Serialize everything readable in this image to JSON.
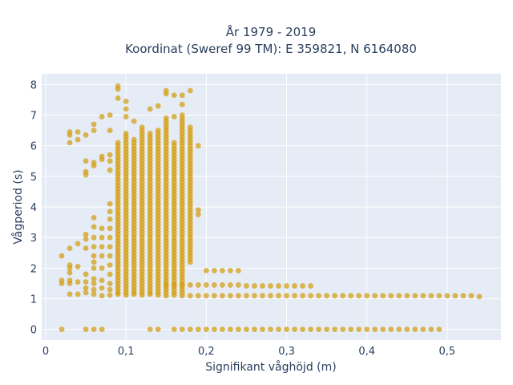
{
  "chart_data": {
    "type": "scatter",
    "title_line1": "År 1979 - 2019",
    "title_line2": "Koordinat (Sweref 99 TM): E 359821, N 6164080",
    "xlabel": "Signifikant våghöjd (m)",
    "ylabel": "Vågperiod (s)",
    "xlim": [
      -0.005,
      0.567
    ],
    "ylim": [
      -0.35,
      8.35
    ],
    "x_ticks": [
      0,
      0.1,
      0.2,
      0.3,
      0.4,
      0.5
    ],
    "x_tick_labels": [
      "0",
      "0,1",
      "0,2",
      "0,3",
      "0,4",
      "0,5"
    ],
    "y_ticks": [
      0,
      1,
      2,
      3,
      4,
      5,
      6,
      7,
      8
    ],
    "y_tick_labels": [
      "0",
      "1",
      "2",
      "3",
      "4",
      "5",
      "6",
      "7",
      "8"
    ],
    "grid": true,
    "legend": "none",
    "marker_color": "#d4a017",
    "plot_bgcolor": "#e5ecf6",
    "series": [
      {
        "values": [
          [
            0.02,
            0
          ],
          [
            0.05,
            0
          ],
          [
            0.06,
            0
          ],
          [
            0.07,
            0
          ],
          [
            0.13,
            0
          ],
          [
            0.14,
            0
          ],
          [
            0.16,
            0
          ],
          [
            0.17,
            0
          ],
          [
            0.18,
            0
          ],
          [
            0.19,
            0
          ],
          [
            0.2,
            0
          ],
          [
            0.21,
            0
          ],
          [
            0.22,
            0
          ],
          [
            0.23,
            0
          ],
          [
            0.24,
            0
          ],
          [
            0.25,
            0
          ],
          [
            0.26,
            0
          ],
          [
            0.27,
            0
          ],
          [
            0.28,
            0
          ],
          [
            0.29,
            0
          ],
          [
            0.3,
            0
          ],
          [
            0.31,
            0
          ],
          [
            0.32,
            0
          ],
          [
            0.33,
            0
          ],
          [
            0.34,
            0
          ],
          [
            0.35,
            0
          ],
          [
            0.36,
            0
          ],
          [
            0.37,
            0
          ],
          [
            0.38,
            0
          ],
          [
            0.39,
            0
          ],
          [
            0.4,
            0
          ],
          [
            0.41,
            0
          ],
          [
            0.42,
            0
          ],
          [
            0.43,
            0
          ],
          [
            0.44,
            0
          ],
          [
            0.45,
            0
          ],
          [
            0.46,
            0
          ],
          [
            0.47,
            0
          ],
          [
            0.48,
            0
          ],
          [
            0.49,
            0
          ],
          [
            0.03,
            1.15
          ],
          [
            0.04,
            1.15
          ],
          [
            0.05,
            1.2
          ],
          [
            0.06,
            1.15
          ],
          [
            0.07,
            1.1
          ],
          [
            0.08,
            1.12
          ],
          [
            0.09,
            1.15
          ],
          [
            0.1,
            1.12
          ],
          [
            0.11,
            1.15
          ],
          [
            0.12,
            1.12
          ],
          [
            0.13,
            1.15
          ],
          [
            0.14,
            1.12
          ],
          [
            0.15,
            1.1
          ],
          [
            0.16,
            1.12
          ],
          [
            0.17,
            1.1
          ],
          [
            0.18,
            1.1
          ],
          [
            0.19,
            1.1
          ],
          [
            0.2,
            1.1
          ],
          [
            0.21,
            1.1
          ],
          [
            0.22,
            1.1
          ],
          [
            0.23,
            1.1
          ],
          [
            0.24,
            1.1
          ],
          [
            0.25,
            1.1
          ],
          [
            0.26,
            1.1
          ],
          [
            0.27,
            1.1
          ],
          [
            0.28,
            1.1
          ],
          [
            0.29,
            1.1
          ],
          [
            0.3,
            1.1
          ],
          [
            0.31,
            1.1
          ],
          [
            0.32,
            1.1
          ],
          [
            0.33,
            1.1
          ],
          [
            0.34,
            1.1
          ],
          [
            0.35,
            1.1
          ],
          [
            0.36,
            1.1
          ],
          [
            0.37,
            1.1
          ],
          [
            0.38,
            1.1
          ],
          [
            0.39,
            1.1
          ],
          [
            0.4,
            1.1
          ],
          [
            0.41,
            1.1
          ],
          [
            0.42,
            1.1
          ],
          [
            0.43,
            1.1
          ],
          [
            0.44,
            1.1
          ],
          [
            0.45,
            1.1
          ],
          [
            0.46,
            1.1
          ],
          [
            0.47,
            1.1
          ],
          [
            0.48,
            1.1
          ],
          [
            0.49,
            1.1
          ],
          [
            0.5,
            1.1
          ],
          [
            0.51,
            1.1
          ],
          [
            0.52,
            1.1
          ],
          [
            0.53,
            1.1
          ],
          [
            0.54,
            1.07
          ],
          [
            0.15,
            1.45
          ],
          [
            0.16,
            1.45
          ],
          [
            0.17,
            1.45
          ],
          [
            0.18,
            1.45
          ],
          [
            0.19,
            1.45
          ],
          [
            0.2,
            1.45
          ],
          [
            0.21,
            1.45
          ],
          [
            0.22,
            1.45
          ],
          [
            0.23,
            1.45
          ],
          [
            0.24,
            1.45
          ],
          [
            0.25,
            1.42
          ],
          [
            0.26,
            1.42
          ],
          [
            0.27,
            1.42
          ],
          [
            0.28,
            1.42
          ],
          [
            0.29,
            1.42
          ],
          [
            0.3,
            1.42
          ],
          [
            0.31,
            1.42
          ],
          [
            0.32,
            1.42
          ],
          [
            0.33,
            1.42
          ],
          [
            0.2,
            1.92
          ],
          [
            0.21,
            1.92
          ],
          [
            0.22,
            1.92
          ],
          [
            0.23,
            1.92
          ],
          [
            0.24,
            1.92
          ],
          [
            0.02,
            1.5
          ],
          [
            0.02,
            1.6
          ],
          [
            0.02,
            2.4
          ],
          [
            0.03,
            1.5
          ],
          [
            0.03,
            1.6
          ],
          [
            0.03,
            1.85
          ],
          [
            0.03,
            2.0
          ],
          [
            0.03,
            2.1
          ],
          [
            0.03,
            2.65
          ],
          [
            0.03,
            6.1
          ],
          [
            0.03,
            6.35
          ],
          [
            0.03,
            6.45
          ],
          [
            0.04,
            1.55
          ],
          [
            0.04,
            2.05
          ],
          [
            0.04,
            2.8
          ],
          [
            0.04,
            6.2
          ],
          [
            0.04,
            6.45
          ],
          [
            0.05,
            1.35
          ],
          [
            0.05,
            1.55
          ],
          [
            0.05,
            1.8
          ],
          [
            0.05,
            2.65
          ],
          [
            0.05,
            2.95
          ],
          [
            0.05,
            3.1
          ],
          [
            0.05,
            5.05
          ],
          [
            0.05,
            5.15
          ],
          [
            0.05,
            5.5
          ],
          [
            0.05,
            6.35
          ],
          [
            0.06,
            1.3
          ],
          [
            0.06,
            1.5
          ],
          [
            0.06,
            1.65
          ],
          [
            0.06,
            2.0
          ],
          [
            0.06,
            2.2
          ],
          [
            0.06,
            2.4
          ],
          [
            0.06,
            2.7
          ],
          [
            0.06,
            3.0
          ],
          [
            0.06,
            3.35
          ],
          [
            0.06,
            3.65
          ],
          [
            0.06,
            5.35
          ],
          [
            0.06,
            5.45
          ],
          [
            0.06,
            6.5
          ],
          [
            0.06,
            6.7
          ],
          [
            0.07,
            1.35
          ],
          [
            0.07,
            1.6
          ],
          [
            0.07,
            2.0
          ],
          [
            0.07,
            2.4
          ],
          [
            0.07,
            2.7
          ],
          [
            0.07,
            3.0
          ],
          [
            0.07,
            3.3
          ],
          [
            0.07,
            5.55
          ],
          [
            0.07,
            5.65
          ],
          [
            0.07,
            6.95
          ],
          [
            0.08,
            1.3
          ],
          [
            0.08,
            1.5
          ],
          [
            0.08,
            1.8
          ],
          [
            0.08,
            2.1
          ],
          [
            0.08,
            2.4
          ],
          [
            0.08,
            2.7
          ],
          [
            0.08,
            3.0
          ],
          [
            0.08,
            3.3
          ],
          [
            0.08,
            3.6
          ],
          [
            0.08,
            3.85
          ],
          [
            0.08,
            4.1
          ],
          [
            0.08,
            5.2
          ],
          [
            0.08,
            5.5
          ],
          [
            0.08,
            5.7
          ],
          [
            0.08,
            6.5
          ],
          [
            0.08,
            7.0
          ],
          [
            0.09,
            7.55
          ],
          [
            0.09,
            7.85
          ],
          [
            0.09,
            7.95
          ],
          [
            0.1,
            6.95
          ],
          [
            0.1,
            7.2
          ],
          [
            0.1,
            7.45
          ],
          [
            0.11,
            6.8
          ],
          [
            0.13,
            7.2
          ],
          [
            0.14,
            7.3
          ],
          [
            0.15,
            7.7
          ],
          [
            0.15,
            7.8
          ],
          [
            0.16,
            6.95
          ],
          [
            0.16,
            7.65
          ],
          [
            0.17,
            7.35
          ],
          [
            0.17,
            7.65
          ],
          [
            0.18,
            7.8
          ],
          [
            0.19,
            6.0
          ],
          [
            0.19,
            3.75
          ],
          [
            0.19,
            3.9
          ]
        ],
        "columns": [
          [
            0.09,
            1.2,
            6.1
          ],
          [
            0.1,
            1.2,
            6.4
          ],
          [
            0.11,
            1.2,
            6.2
          ],
          [
            0.12,
            1.2,
            6.6
          ],
          [
            0.13,
            1.2,
            6.4
          ],
          [
            0.14,
            1.2,
            6.5
          ],
          [
            0.15,
            1.2,
            6.9
          ],
          [
            0.16,
            1.2,
            6.1
          ],
          [
            0.17,
            1.2,
            7.0
          ],
          [
            0.18,
            2.2,
            6.6
          ]
        ]
      }
    ]
  }
}
